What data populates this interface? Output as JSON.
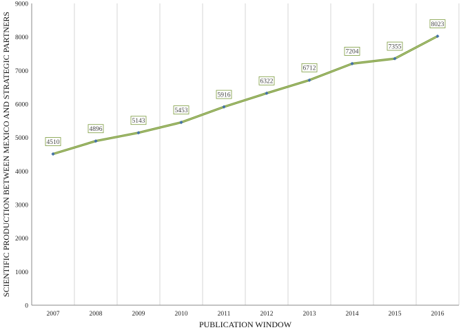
{
  "chart_data": {
    "type": "line",
    "categories": [
      "2007",
      "2008",
      "2009",
      "2010",
      "2011",
      "2012",
      "2013",
      "2014",
      "2015",
      "2016"
    ],
    "values": [
      4510,
      4896,
      5143,
      5453,
      5916,
      6322,
      6712,
      7204,
      7355,
      8023
    ],
    "ylim": [
      0,
      9000
    ],
    "ytick_step": 1000,
    "xlabel": "PUBLICATION WINDOW",
    "ylabel": "SCIENTIFIC PRODUCTION BETWEEN MEXICO AND STRATEGIC PARTNERS",
    "grid": "vertical",
    "data_labels": true,
    "colors": {
      "line": "#7a9a3c",
      "marker": "#4472a8",
      "label_border": "#7a9a3c",
      "grid": "#d4d4d4",
      "axis": "#888888"
    }
  }
}
